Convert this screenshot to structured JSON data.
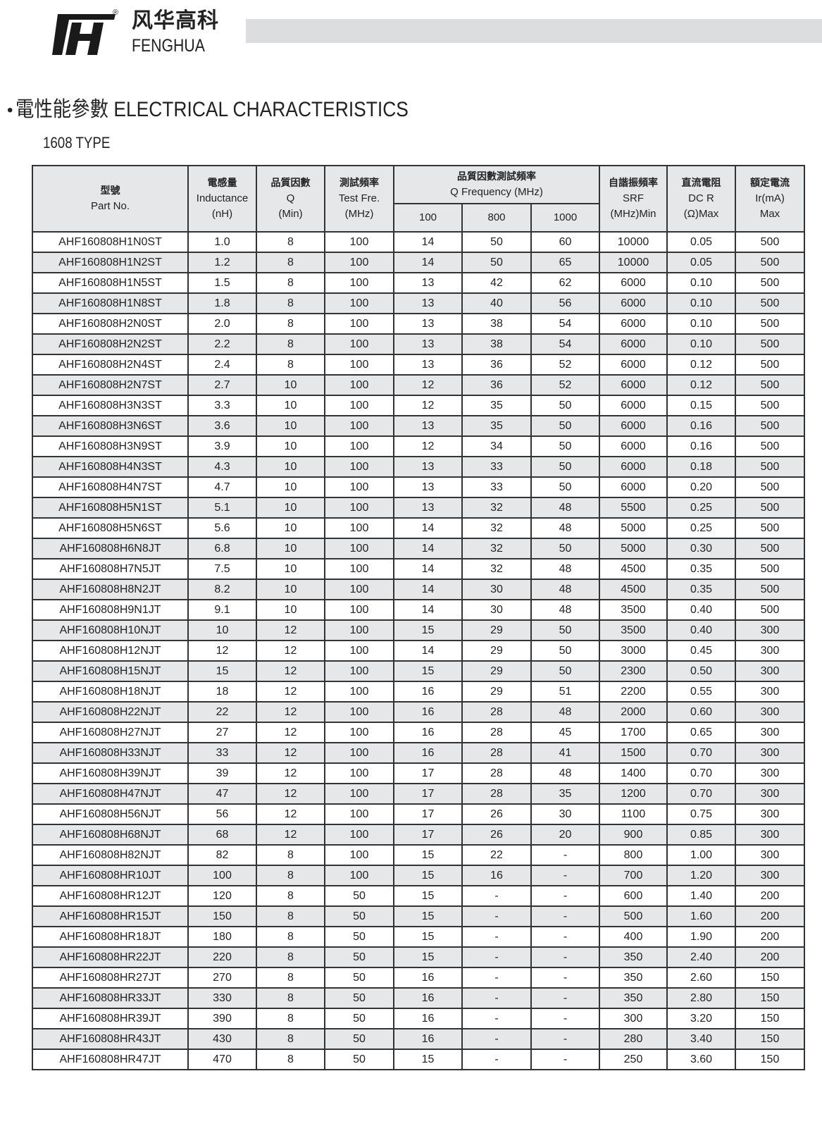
{
  "brand": {
    "name_cn": "风华高科",
    "name_en": "FENGHUA",
    "registered": "®"
  },
  "section": {
    "bullet": "•",
    "title": "電性能參數 ELECTRICAL CHARACTERISTICS",
    "subtitle": "1608 TYPE"
  },
  "table": {
    "headers": {
      "part": {
        "cn": "型號",
        "en": "Part No."
      },
      "inductance": {
        "cn": "電感量",
        "en": "Inductance",
        "unit": "(nH)"
      },
      "q": {
        "cn": "品質因數",
        "en": "Q",
        "unit": "(Min)"
      },
      "test_freq": {
        "cn": "測試頻率",
        "en": "Test Fre.",
        "unit": "(MHz)"
      },
      "q_freq": {
        "cn": "品質因數測試頻率",
        "en": "Q Frequency (MHz)",
        "sub": [
          "100",
          "800",
          "1000"
        ]
      },
      "srf": {
        "cn": "自諧振頻率",
        "en": "SRF",
        "unit": "(MHz)Min"
      },
      "dcr": {
        "cn": "直流電阻",
        "en": "DC R",
        "unit": "(Ω)Max"
      },
      "ir": {
        "cn": "額定電流",
        "en": "Ir(mA)",
        "unit": "Max"
      }
    },
    "rows": [
      [
        "AHF160808H1N0ST",
        "1.0",
        "8",
        "100",
        "14",
        "50",
        "60",
        "10000",
        "0.05",
        "500"
      ],
      [
        "AHF160808H1N2ST",
        "1.2",
        "8",
        "100",
        "14",
        "50",
        "65",
        "10000",
        "0.05",
        "500"
      ],
      [
        "AHF160808H1N5ST",
        "1.5",
        "8",
        "100",
        "13",
        "42",
        "62",
        "6000",
        "0.10",
        "500"
      ],
      [
        "AHF160808H1N8ST",
        "1.8",
        "8",
        "100",
        "13",
        "40",
        "56",
        "6000",
        "0.10",
        "500"
      ],
      [
        "AHF160808H2N0ST",
        "2.0",
        "8",
        "100",
        "13",
        "38",
        "54",
        "6000",
        "0.10",
        "500"
      ],
      [
        "AHF160808H2N2ST",
        "2.2",
        "8",
        "100",
        "13",
        "38",
        "54",
        "6000",
        "0.10",
        "500"
      ],
      [
        "AHF160808H2N4ST",
        "2.4",
        "8",
        "100",
        "13",
        "36",
        "52",
        "6000",
        "0.12",
        "500"
      ],
      [
        "AHF160808H2N7ST",
        "2.7",
        "10",
        "100",
        "12",
        "36",
        "52",
        "6000",
        "0.12",
        "500"
      ],
      [
        "AHF160808H3N3ST",
        "3.3",
        "10",
        "100",
        "12",
        "35",
        "50",
        "6000",
        "0.15",
        "500"
      ],
      [
        "AHF160808H3N6ST",
        "3.6",
        "10",
        "100",
        "13",
        "35",
        "50",
        "6000",
        "0.16",
        "500"
      ],
      [
        "AHF160808H3N9ST",
        "3.9",
        "10",
        "100",
        "12",
        "34",
        "50",
        "6000",
        "0.16",
        "500"
      ],
      [
        "AHF160808H4N3ST",
        "4.3",
        "10",
        "100",
        "13",
        "33",
        "50",
        "6000",
        "0.18",
        "500"
      ],
      [
        "AHF160808H4N7ST",
        "4.7",
        "10",
        "100",
        "13",
        "33",
        "50",
        "6000",
        "0.20",
        "500"
      ],
      [
        "AHF160808H5N1ST",
        "5.1",
        "10",
        "100",
        "13",
        "32",
        "48",
        "5500",
        "0.25",
        "500"
      ],
      [
        "AHF160808H5N6ST",
        "5.6",
        "10",
        "100",
        "14",
        "32",
        "48",
        "5000",
        "0.25",
        "500"
      ],
      [
        "AHF160808H6N8JT",
        "6.8",
        "10",
        "100",
        "14",
        "32",
        "50",
        "5000",
        "0.30",
        "500"
      ],
      [
        "AHF160808H7N5JT",
        "7.5",
        "10",
        "100",
        "14",
        "32",
        "48",
        "4500",
        "0.35",
        "500"
      ],
      [
        "AHF160808H8N2JT",
        "8.2",
        "10",
        "100",
        "14",
        "30",
        "48",
        "4500",
        "0.35",
        "500"
      ],
      [
        "AHF160808H9N1JT",
        "9.1",
        "10",
        "100",
        "14",
        "30",
        "48",
        "3500",
        "0.40",
        "500"
      ],
      [
        "AHF160808H10NJT",
        "10",
        "12",
        "100",
        "15",
        "29",
        "50",
        "3500",
        "0.40",
        "300"
      ],
      [
        "AHF160808H12NJT",
        "12",
        "12",
        "100",
        "14",
        "29",
        "50",
        "3000",
        "0.45",
        "300"
      ],
      [
        "AHF160808H15NJT",
        "15",
        "12",
        "100",
        "15",
        "29",
        "50",
        "2300",
        "0.50",
        "300"
      ],
      [
        "AHF160808H18NJT",
        "18",
        "12",
        "100",
        "16",
        "29",
        "51",
        "2200",
        "0.55",
        "300"
      ],
      [
        "AHF160808H22NJT",
        "22",
        "12",
        "100",
        "16",
        "28",
        "48",
        "2000",
        "0.60",
        "300"
      ],
      [
        "AHF160808H27NJT",
        "27",
        "12",
        "100",
        "16",
        "28",
        "45",
        "1700",
        "0.65",
        "300"
      ],
      [
        "AHF160808H33NJT",
        "33",
        "12",
        "100",
        "16",
        "28",
        "41",
        "1500",
        "0.70",
        "300"
      ],
      [
        "AHF160808H39NJT",
        "39",
        "12",
        "100",
        "17",
        "28",
        "48",
        "1400",
        "0.70",
        "300"
      ],
      [
        "AHF160808H47NJT",
        "47",
        "12",
        "100",
        "17",
        "28",
        "35",
        "1200",
        "0.70",
        "300"
      ],
      [
        "AHF160808H56NJT",
        "56",
        "12",
        "100",
        "17",
        "26",
        "30",
        "1100",
        "0.75",
        "300"
      ],
      [
        "AHF160808H68NJT",
        "68",
        "12",
        "100",
        "17",
        "26",
        "20",
        "900",
        "0.85",
        "300"
      ],
      [
        "AHF160808H82NJT",
        "82",
        "8",
        "100",
        "15",
        "22",
        "-",
        "800",
        "1.00",
        "300"
      ],
      [
        "AHF160808HR10JT",
        "100",
        "8",
        "100",
        "15",
        "16",
        "-",
        "700",
        "1.20",
        "300"
      ],
      [
        "AHF160808HR12JT",
        "120",
        "8",
        "50",
        "15",
        "-",
        "-",
        "600",
        "1.40",
        "200"
      ],
      [
        "AHF160808HR15JT",
        "150",
        "8",
        "50",
        "15",
        "-",
        "-",
        "500",
        "1.60",
        "200"
      ],
      [
        "AHF160808HR18JT",
        "180",
        "8",
        "50",
        "15",
        "-",
        "-",
        "400",
        "1.90",
        "200"
      ],
      [
        "AHF160808HR22JT",
        "220",
        "8",
        "50",
        "15",
        "-",
        "-",
        "350",
        "2.40",
        "200"
      ],
      [
        "AHF160808HR27JT",
        "270",
        "8",
        "50",
        "16",
        "-",
        "-",
        "350",
        "2.60",
        "150"
      ],
      [
        "AHF160808HR33JT",
        "330",
        "8",
        "50",
        "16",
        "-",
        "-",
        "350",
        "2.80",
        "150"
      ],
      [
        "AHF160808HR39JT",
        "390",
        "8",
        "50",
        "16",
        "-",
        "-",
        "300",
        "3.20",
        "150"
      ],
      [
        "AHF160808HR43JT",
        "430",
        "8",
        "50",
        "16",
        "-",
        "-",
        "280",
        "3.40",
        "150"
      ],
      [
        "AHF160808HR47JT",
        "470",
        "8",
        "50",
        "15",
        "-",
        "-",
        "250",
        "3.60",
        "150"
      ]
    ]
  },
  "colors": {
    "header_bg": "#e6e7e9",
    "stripe_bg": "#e6e7e9",
    "bar_bg": "#dcdddf",
    "border": "#333333"
  }
}
